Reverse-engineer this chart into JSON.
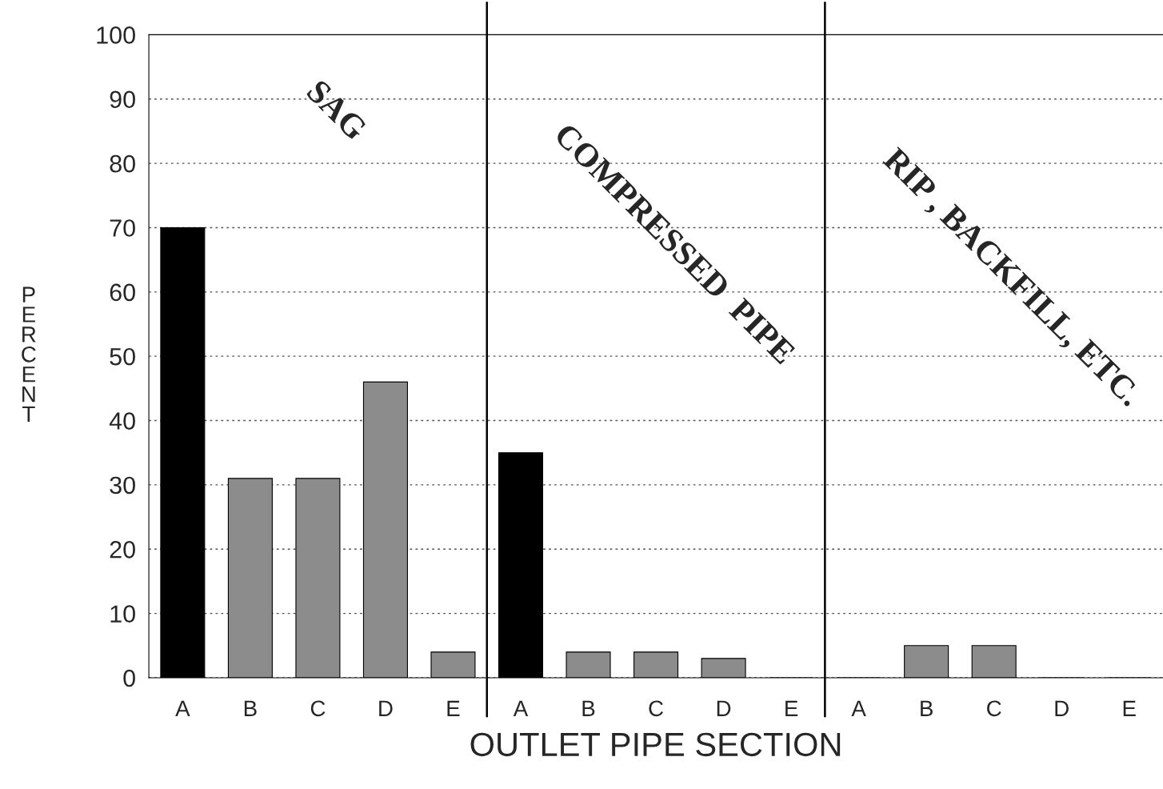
{
  "chart_data": {
    "type": "bar",
    "xlabel": "OUTLET PIPE SECTION",
    "ylabel": "PERCENT",
    "categories": [
      "A",
      "B",
      "C",
      "D",
      "E",
      "A",
      "B",
      "C",
      "D",
      "E",
      "A",
      "B",
      "C",
      "D",
      "E"
    ],
    "values": [
      70,
      31,
      31,
      46,
      4,
      35,
      4,
      4,
      3,
      0,
      0,
      5,
      5,
      0,
      0
    ],
    "colors": [
      "#000000",
      "#8c8c8c",
      "#8c8c8c",
      "#8c8c8c",
      "#8c8c8c",
      "#000000",
      "#8c8c8c",
      "#8c8c8c",
      "#8c8c8c",
      "#8c8c8c",
      "#000000",
      "#8c8c8c",
      "#8c8c8c",
      "#8c8c8c",
      "#8c8c8c"
    ],
    "annotations": [
      "SAG",
      "COMPRESSED  PIPE",
      "RIP , BACKFILL, ETC."
    ],
    "ylim": [
      0,
      100
    ],
    "yticks": [
      0,
      10,
      20,
      30,
      40,
      50,
      60,
      70,
      80,
      90,
      100
    ],
    "grid": "y",
    "legend": false
  }
}
